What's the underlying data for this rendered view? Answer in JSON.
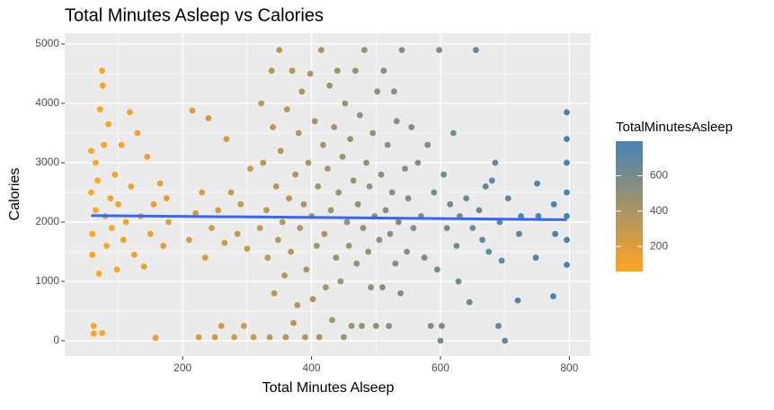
{
  "chart_data": {
    "type": "scatter",
    "title": "Total Minutes Asleep vs Calories",
    "x_label": "Total Minutes Alseep",
    "y_label": "Calories",
    "xlim": [
      17,
      833
    ],
    "ylim": [
      -258,
      5182
    ],
    "xticks": [
      200,
      400,
      600,
      800
    ],
    "yticks": [
      0,
      1000,
      2000,
      3000,
      4000,
      5000
    ],
    "x_minor_ticks": [
      100,
      300,
      500,
      700
    ],
    "y_minor_ticks": [
      500,
      1500,
      2500,
      3500,
      4500
    ],
    "grid": true,
    "color_scale": {
      "title": "TotalMinutesAsleep",
      "lim": [
        58,
        796
      ],
      "ticks": [
        200,
        400,
        600
      ],
      "low": "#ffa51f",
      "high": "#4682b4"
    },
    "trend": {
      "color": "#3366ff",
      "x": [
        58,
        796
      ],
      "y": [
        2110,
        2040
      ]
    },
    "x": [
      58,
      58,
      60,
      60,
      62,
      62,
      65,
      65,
      68,
      70,
      72,
      75,
      76,
      78,
      80,
      75,
      82,
      85,
      88,
      90,
      95,
      98,
      100,
      105,
      108,
      112,
      118,
      120,
      125,
      130,
      135,
      140,
      145,
      150,
      155,
      158,
      165,
      170,
      175,
      178,
      210,
      215,
      220,
      225,
      230,
      235,
      240,
      245,
      250,
      255,
      260,
      265,
      268,
      275,
      280,
      285,
      290,
      295,
      300,
      305,
      310,
      320,
      322,
      325,
      330,
      332,
      335,
      338,
      340,
      342,
      345,
      348,
      350,
      352,
      355,
      358,
      360,
      362,
      365,
      368,
      370,
      372,
      375,
      378,
      380,
      382,
      385,
      388,
      390,
      392,
      395,
      398,
      400,
      402,
      405,
      408,
      410,
      412,
      415,
      418,
      420,
      422,
      425,
      428,
      430,
      432,
      435,
      438,
      440,
      442,
      445,
      448,
      450,
      452,
      455,
      458,
      460,
      462,
      465,
      468,
      470,
      472,
      475,
      478,
      480,
      482,
      485,
      488,
      490,
      492,
      495,
      498,
      500,
      502,
      505,
      508,
      510,
      512,
      515,
      518,
      520,
      522,
      525,
      528,
      530,
      532,
      535,
      538,
      540,
      545,
      548,
      550,
      555,
      558,
      565,
      570,
      575,
      580,
      585,
      590,
      595,
      598,
      600,
      602,
      605,
      610,
      615,
      620,
      625,
      628,
      630,
      640,
      645,
      650,
      655,
      660,
      665,
      670,
      675,
      680,
      685,
      690,
      692,
      695,
      700,
      705,
      720,
      722,
      725,
      748,
      750,
      752,
      775,
      776,
      778,
      796,
      796,
      796,
      796,
      796,
      796,
      796
    ],
    "values": [
      3200,
      2500,
      1800,
      1450,
      250,
      120,
      3000,
      2200,
      2700,
      1130,
      3900,
      4550,
      4300,
      3300,
      2100,
      130,
      1600,
      3650,
      2400,
      1900,
      2800,
      1200,
      2300,
      3300,
      1700,
      2000,
      3850,
      2600,
      1450,
      3500,
      2100,
      1250,
      3100,
      1800,
      2300,
      50,
      2650,
      1600,
      2400,
      2000,
      1700,
      3880,
      2150,
      60,
      2500,
      1400,
      3750,
      1900,
      60,
      2200,
      250,
      1650,
      3400,
      2500,
      60,
      1800,
      2300,
      250,
      1550,
      2900,
      60,
      1900,
      4000,
      3000,
      2200,
      1400,
      60,
      4550,
      3600,
      800,
      2600,
      1700,
      4900,
      3200,
      2000,
      1100,
      60,
      3900,
      2400,
      1500,
      4550,
      300,
      2800,
      600,
      3500,
      1900,
      4200,
      2300,
      60,
      1200,
      3000,
      4500,
      2100,
      700,
      3700,
      1600,
      2600,
      60,
      4900,
      3300,
      1800,
      900,
      2900,
      4300,
      2200,
      350,
      3600,
      1400,
      4550,
      2500,
      1000,
      3100,
      60,
      4000,
      2000,
      1600,
      3400,
      250,
      2700,
      4550,
      1300,
      2300,
      3800,
      250,
      1900,
      4900,
      3000,
      1500,
      2600,
      900,
      3500,
      2100,
      250,
      4200,
      1700,
      2800,
      900,
      4550,
      2200,
      3300,
      250,
      1800,
      2500,
      4200,
      1300,
      3700,
      2000,
      800,
      4900,
      2900,
      1500,
      2400,
      3600,
      1900,
      3000,
      2100,
      1400,
      3300,
      250,
      2500,
      1200,
      4900,
      0,
      250,
      2800,
      1900,
      2300,
      3500,
      1600,
      1000,
      2100,
      2400,
      650,
      1900,
      4900,
      2200,
      1700,
      2600,
      1500,
      2700,
      3000,
      250,
      2000,
      1350,
      0,
      2400,
      680,
      1800,
      2100,
      1400,
      2650,
      2100,
      750,
      2300,
      1800,
      1280,
      3850,
      2500,
      3000,
      2100,
      1700,
      3400
    ]
  }
}
